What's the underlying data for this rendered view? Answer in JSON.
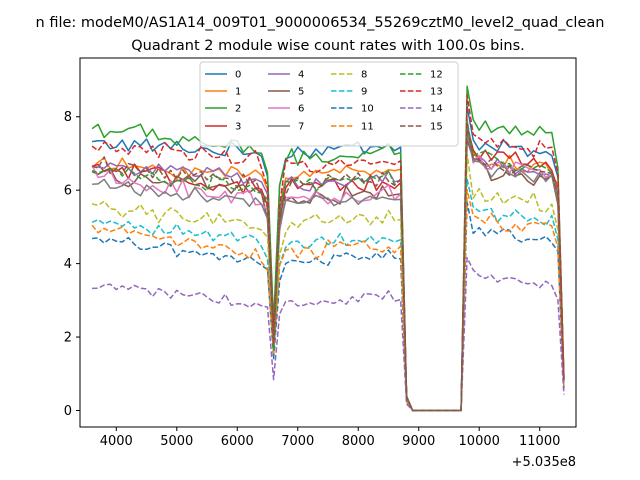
{
  "chart_data": {
    "type": "line",
    "suptitle": "n file: modeM0/AS1A14_009T01_9000006534_55269cztM0_level2_quad_clean",
    "title": "Quadrant 2 module wise count rates with 100.0s bins.",
    "xlabel": "",
    "ylabel": "",
    "x_offset_label": "+5.035e8",
    "xlim": [
      3400,
      11600
    ],
    "ylim": [
      -0.45,
      9.6
    ],
    "xticks": [
      4000,
      5000,
      6000,
      7000,
      8000,
      9000,
      10000,
      11000
    ],
    "yticks": [
      0,
      2,
      4,
      6,
      8
    ],
    "grid": false,
    "legend_position": "top-center",
    "legend_columns": 4,
    "x_start": 3600,
    "x_step": 100,
    "series": [
      {
        "name": "0",
        "color": "#1f77b4",
        "dash": "solid",
        "base": 7.3,
        "noise": 0.17,
        "trend": -0.3,
        "pre_dip": 7.0,
        "late": 7.3
      },
      {
        "name": "1",
        "color": "#ff7f0e",
        "dash": "solid",
        "base": 6.7,
        "noise": 0.17,
        "trend": -0.3,
        "pre_dip": 6.4,
        "late": 6.9
      },
      {
        "name": "2",
        "color": "#2ca02c",
        "dash": "solid",
        "base": 7.7,
        "noise": 0.22,
        "trend": -0.6,
        "pre_dip": 6.8,
        "late": 7.9
      },
      {
        "name": "3",
        "color": "#d62728",
        "dash": "solid",
        "base": 6.6,
        "noise": 0.2,
        "trend": -0.6,
        "pre_dip": 6.0,
        "late": 7.0
      },
      {
        "name": "4",
        "color": "#9467bd",
        "dash": "solid",
        "base": 6.7,
        "noise": 0.17,
        "trend": -0.4,
        "pre_dip": 6.1,
        "late": 6.8
      },
      {
        "name": "5",
        "color": "#8c564b",
        "dash": "solid",
        "base": 6.5,
        "noise": 0.2,
        "trend": -0.6,
        "pre_dip": 5.7,
        "late": 6.6
      },
      {
        "name": "6",
        "color": "#e377c2",
        "dash": "solid",
        "base": 6.4,
        "noise": 0.2,
        "trend": -0.7,
        "pre_dip": 5.7,
        "late": 6.8
      },
      {
        "name": "7",
        "color": "#7f7f7f",
        "dash": "solid",
        "base": 6.2,
        "noise": 0.15,
        "trend": -0.6,
        "pre_dip": 5.6,
        "late": 6.6
      },
      {
        "name": "8",
        "color": "#bcbd22",
        "dash": "dashed",
        "base": 5.6,
        "noise": 0.2,
        "trend": -0.6,
        "pre_dip": 5.0,
        "late": 5.9
      },
      {
        "name": "9",
        "color": "#17becf",
        "dash": "dashed",
        "base": 5.2,
        "noise": 0.15,
        "trend": -0.6,
        "pre_dip": 4.5,
        "late": 5.4
      },
      {
        "name": "10",
        "color": "#1f77b4",
        "dash": "dashed",
        "base": 4.7,
        "noise": 0.13,
        "trend": -0.7,
        "pre_dip": 4.0,
        "late": 4.9
      },
      {
        "name": "11",
        "color": "#ff7f0e",
        "dash": "dashed",
        "base": 5.0,
        "noise": 0.18,
        "trend": -0.8,
        "pre_dip": 4.3,
        "late": 5.2
      },
      {
        "name": "12",
        "color": "#2ca02c",
        "dash": "dashed",
        "base": 6.6,
        "noise": 0.18,
        "trend": -0.6,
        "pre_dip": 6.1,
        "late": 6.9
      },
      {
        "name": "13",
        "color": "#d62728",
        "dash": "dashed",
        "base": 7.2,
        "noise": 0.2,
        "trend": -0.4,
        "pre_dip": 6.6,
        "late": 7.4
      },
      {
        "name": "14",
        "color": "#9467bd",
        "dash": "dashed",
        "base": 3.4,
        "noise": 0.12,
        "trend": -0.5,
        "pre_dip": 2.9,
        "late": 3.6
      },
      {
        "name": "15",
        "color": "#8c564b",
        "dash": "dashed",
        "base": 6.7,
        "noise": 0.2,
        "trend": -0.6,
        "pre_dip": 6.1,
        "late": 6.8
      }
    ]
  }
}
